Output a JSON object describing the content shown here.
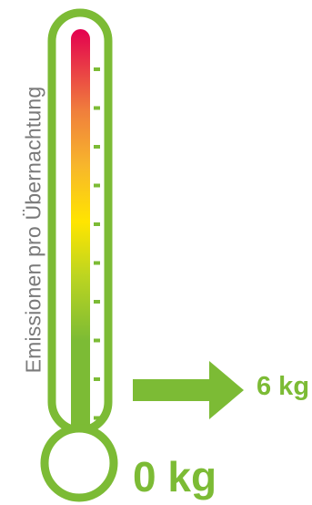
{
  "axis_label": "Emissionen pro Übernachtung",
  "indicator_value": "6 kg",
  "baseline_value": "0 kg",
  "level_fraction": 0.14,
  "scale_min_kg": 0,
  "tick_count": 10,
  "colors": {
    "frame_green": "#7cbb35",
    "gradient_top": "#e3004f",
    "gradient_orange": "#f07f3c",
    "gradient_amber": "#f7b52c",
    "gradient_yellow": "#ffe500",
    "gradient_lime": "#bdd520",
    "gradient_bottom": "#7cbb35",
    "label_gray": "#7a7a7a"
  },
  "icons": {
    "arrow": "arrow-right-icon",
    "thermometer": "thermometer-icon"
  }
}
